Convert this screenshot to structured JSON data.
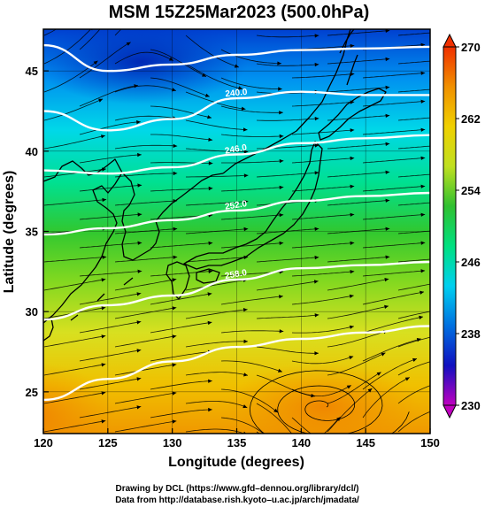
{
  "title": "MSM 15Z25Mar2023 (500.0hPa)",
  "xaxis": {
    "label": "Longitude (degrees)",
    "range": [
      120,
      150
    ],
    "ticks": [
      120,
      125,
      130,
      135,
      140,
      145,
      150
    ],
    "tick_labels": [
      "120",
      "125",
      "130",
      "135",
      "140",
      "145",
      "150"
    ]
  },
  "yaxis": {
    "label": "Latitude  (degrees)",
    "range": [
      22.4,
      47.6
    ],
    "ticks": [
      25,
      30,
      35,
      40,
      45
    ],
    "tick_labels": [
      "25",
      "30",
      "35",
      "40",
      "45"
    ]
  },
  "colorbar": {
    "range": [
      230,
      270
    ],
    "ticks": [
      230,
      238,
      246,
      254,
      262,
      270
    ],
    "tick_labels": [
      "230",
      "238",
      "246",
      "254",
      "262",
      "270"
    ],
    "colors": [
      "#c000c0",
      "#1010c0",
      "#0070e0",
      "#00d0f0",
      "#00e080",
      "#30c030",
      "#c0e020",
      "#f0d000",
      "#f09000",
      "#f03000"
    ]
  },
  "contours": [
    {
      "label": "240.0",
      "lat_at_lon": [
        [
          120,
          42.5
        ],
        [
          125,
          41.3
        ],
        [
          130,
          42.0
        ],
        [
          135,
          43.3
        ],
        [
          140,
          43.7
        ],
        [
          145,
          43.5
        ],
        [
          150,
          43.5
        ]
      ]
    },
    {
      "label": "246.0",
      "lat_at_lon": [
        [
          120,
          38.8
        ],
        [
          125,
          38.6
        ],
        [
          130,
          39.0
        ],
        [
          135,
          39.8
        ],
        [
          140,
          40.5
        ],
        [
          145,
          40.8
        ],
        [
          150,
          41.0
        ]
      ]
    },
    {
      "label": "252.0",
      "lat_at_lon": [
        [
          120,
          34.8
        ],
        [
          125,
          35.2
        ],
        [
          130,
          35.7
        ],
        [
          135,
          36.3
        ],
        [
          140,
          36.9
        ],
        [
          145,
          37.2
        ],
        [
          150,
          37.4
        ]
      ]
    },
    {
      "label": "258.0",
      "lat_at_lon": [
        [
          120,
          29.5
        ],
        [
          125,
          30.4
        ],
        [
          130,
          31.0
        ],
        [
          135,
          32.0
        ],
        [
          140,
          32.7
        ],
        [
          145,
          32.9
        ],
        [
          150,
          33.1
        ]
      ]
    },
    {
      "label": "",
      "lat_at_lon": [
        [
          120,
          24.5
        ],
        [
          125,
          25.8
        ],
        [
          130,
          26.9
        ],
        [
          135,
          27.8
        ],
        [
          140,
          28.3
        ],
        [
          145,
          28.7
        ],
        [
          150,
          29.1
        ]
      ]
    },
    {
      "label": "",
      "lat_at_lon": [
        [
          120,
          46.6
        ],
        [
          125,
          45.0
        ],
        [
          130,
          45.4
        ],
        [
          135,
          46.0
        ],
        [
          140,
          46.3
        ],
        [
          145,
          46.4
        ],
        [
          150,
          46.5
        ]
      ]
    }
  ],
  "credits": {
    "line1": "Drawing by DCL (https://www.gfd–dennou.org/library/dcl/)",
    "line2": "Data from http://database.rish.kyoto–u.ac.jp/arch/jmadata/"
  }
}
